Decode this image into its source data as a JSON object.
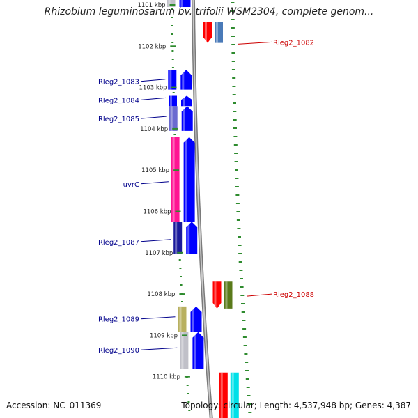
{
  "title": "Rhizobium leguminosarum bv. trifolii WSM2304, complete genom...",
  "accession_text": "Accession: NC_011369",
  "topology_text": "Topology: circular; Length: 4,537,948 bp; Genes: 4,387",
  "ruler": {
    "unit": "kbp",
    "labels": [
      "1101 kbp",
      "1102 kbp",
      "1103 kbp",
      "1104 kbp",
      "1105 kbp",
      "1106 kbp",
      "1107 kbp",
      "1108 kbp",
      "1109 kbp",
      "1110 kbp"
    ]
  },
  "colors": {
    "blue": "#0000ff",
    "navy": "#1a1a9c",
    "slate": "#6a6ad0",
    "red": "#ff0000",
    "steel": "#4a7ab8",
    "pink": "#ff1493",
    "olive": "#5a7a1a",
    "khaki": "#b8b060",
    "lightgray": "#c0c0c8",
    "cyan": "#00e0e8",
    "tick": "#2e8b2e",
    "backbone": "#999999",
    "label_blue": "#00008b",
    "label_red": "#cc0000"
  },
  "genes": [
    {
      "id": "g-1081-a",
      "start_kbp": 1100.8,
      "end_kbp": 1101.05,
      "lane": "left-outer",
      "color": "lightgray",
      "arrow": false
    },
    {
      "id": "g-1081-b",
      "start_kbp": 1100.8,
      "end_kbp": 1101.05,
      "lane": "left-inner",
      "color": "blue",
      "arrow": false
    },
    {
      "id": "Rleg2_1082",
      "start_kbp": 1101.42,
      "end_kbp": 1101.92,
      "lane": "right-inner",
      "color": "red",
      "arrow": "down"
    },
    {
      "id": "Rleg2_1082-b",
      "start_kbp": 1101.42,
      "end_kbp": 1101.92,
      "lane": "right-outer",
      "color": "steel",
      "arrow": false
    },
    {
      "id": "Rleg2_1083",
      "start_kbp": 1102.57,
      "end_kbp": 1103.05,
      "lane": "left-outer",
      "color": "blue",
      "arrow": false
    },
    {
      "id": "Rleg2_1083-b",
      "start_kbp": 1102.57,
      "end_kbp": 1103.05,
      "lane": "left-inner",
      "color": "blue",
      "arrow": "up"
    },
    {
      "id": "Rleg2_1084",
      "start_kbp": 1103.2,
      "end_kbp": 1103.45,
      "lane": "left-outer",
      "color": "blue",
      "arrow": false
    },
    {
      "id": "Rleg2_1084-b",
      "start_kbp": 1103.2,
      "end_kbp": 1103.45,
      "lane": "left-inner",
      "color": "blue",
      "arrow": "up"
    },
    {
      "id": "Rleg2_1085",
      "start_kbp": 1103.45,
      "end_kbp": 1104.05,
      "lane": "left-outer",
      "color": "slate",
      "arrow": false
    },
    {
      "id": "Rleg2_1085-b",
      "start_kbp": 1103.45,
      "end_kbp": 1104.05,
      "lane": "left-inner",
      "color": "blue",
      "arrow": "up"
    },
    {
      "id": "uvrC",
      "start_kbp": 1104.2,
      "end_kbp": 1106.25,
      "lane": "left-outer",
      "color": "pink",
      "arrow": false
    },
    {
      "id": "uvrC-b",
      "start_kbp": 1104.2,
      "end_kbp": 1106.25,
      "lane": "left-inner",
      "color": "blue",
      "arrow": "up"
    },
    {
      "id": "Rleg2_1087",
      "start_kbp": 1106.25,
      "end_kbp": 1107.02,
      "lane": "left-outer",
      "color": "navy",
      "arrow": false
    },
    {
      "id": "Rleg2_1087-b",
      "start_kbp": 1106.25,
      "end_kbp": 1107.02,
      "lane": "left-inner",
      "color": "blue",
      "arrow": "up"
    },
    {
      "id": "Rleg2_1088",
      "start_kbp": 1107.7,
      "end_kbp": 1108.35,
      "lane": "right-inner",
      "color": "red",
      "arrow": "down"
    },
    {
      "id": "Rleg2_1088-b",
      "start_kbp": 1107.7,
      "end_kbp": 1108.35,
      "lane": "right-outer",
      "color": "olive",
      "arrow": false
    },
    {
      "id": "Rleg2_1089",
      "start_kbp": 1108.3,
      "end_kbp": 1108.92,
      "lane": "left-outer",
      "color": "khaki",
      "arrow": false
    },
    {
      "id": "Rleg2_1089-b",
      "start_kbp": 1108.3,
      "end_kbp": 1108.92,
      "lane": "left-inner",
      "color": "blue",
      "arrow": "up"
    },
    {
      "id": "Rleg2_1090",
      "start_kbp": 1108.92,
      "end_kbp": 1109.82,
      "lane": "left-outer",
      "color": "lightgray",
      "arrow": false
    },
    {
      "id": "Rleg2_1090-b",
      "start_kbp": 1108.92,
      "end_kbp": 1109.82,
      "lane": "left-inner",
      "color": "blue",
      "arrow": "up"
    },
    {
      "id": "g-1091-a",
      "start_kbp": 1109.9,
      "end_kbp": 1111.0,
      "lane": "right-inner",
      "color": "red",
      "arrow": false
    },
    {
      "id": "g-1091-b",
      "start_kbp": 1109.9,
      "end_kbp": 1111.0,
      "lane": "right-outer",
      "color": "cyan",
      "arrow": false
    }
  ],
  "gene_labels": [
    {
      "text": "Rleg2_1082",
      "side": "right",
      "color": "label_red",
      "kbp": 1101.9
    },
    {
      "text": "Rleg2_1083",
      "side": "left",
      "color": "label_blue",
      "kbp": 1102.85
    },
    {
      "text": "Rleg2_1084",
      "side": "left",
      "color": "label_blue",
      "kbp": 1103.3
    },
    {
      "text": "Rleg2_1085",
      "side": "left",
      "color": "label_blue",
      "kbp": 1103.75
    },
    {
      "text": "uvrC",
      "side": "left",
      "color": "label_blue",
      "kbp": 1105.33
    },
    {
      "text": "Rleg2_1087",
      "side": "left",
      "color": "label_blue",
      "kbp": 1106.73
    },
    {
      "text": "Rleg2_1088",
      "side": "right",
      "color": "label_red",
      "kbp": 1108.0
    },
    {
      "text": "Rleg2_1089",
      "side": "left",
      "color": "label_blue",
      "kbp": 1108.6
    },
    {
      "text": "Rleg2_1090",
      "side": "left",
      "color": "label_blue",
      "kbp": 1109.35
    }
  ]
}
